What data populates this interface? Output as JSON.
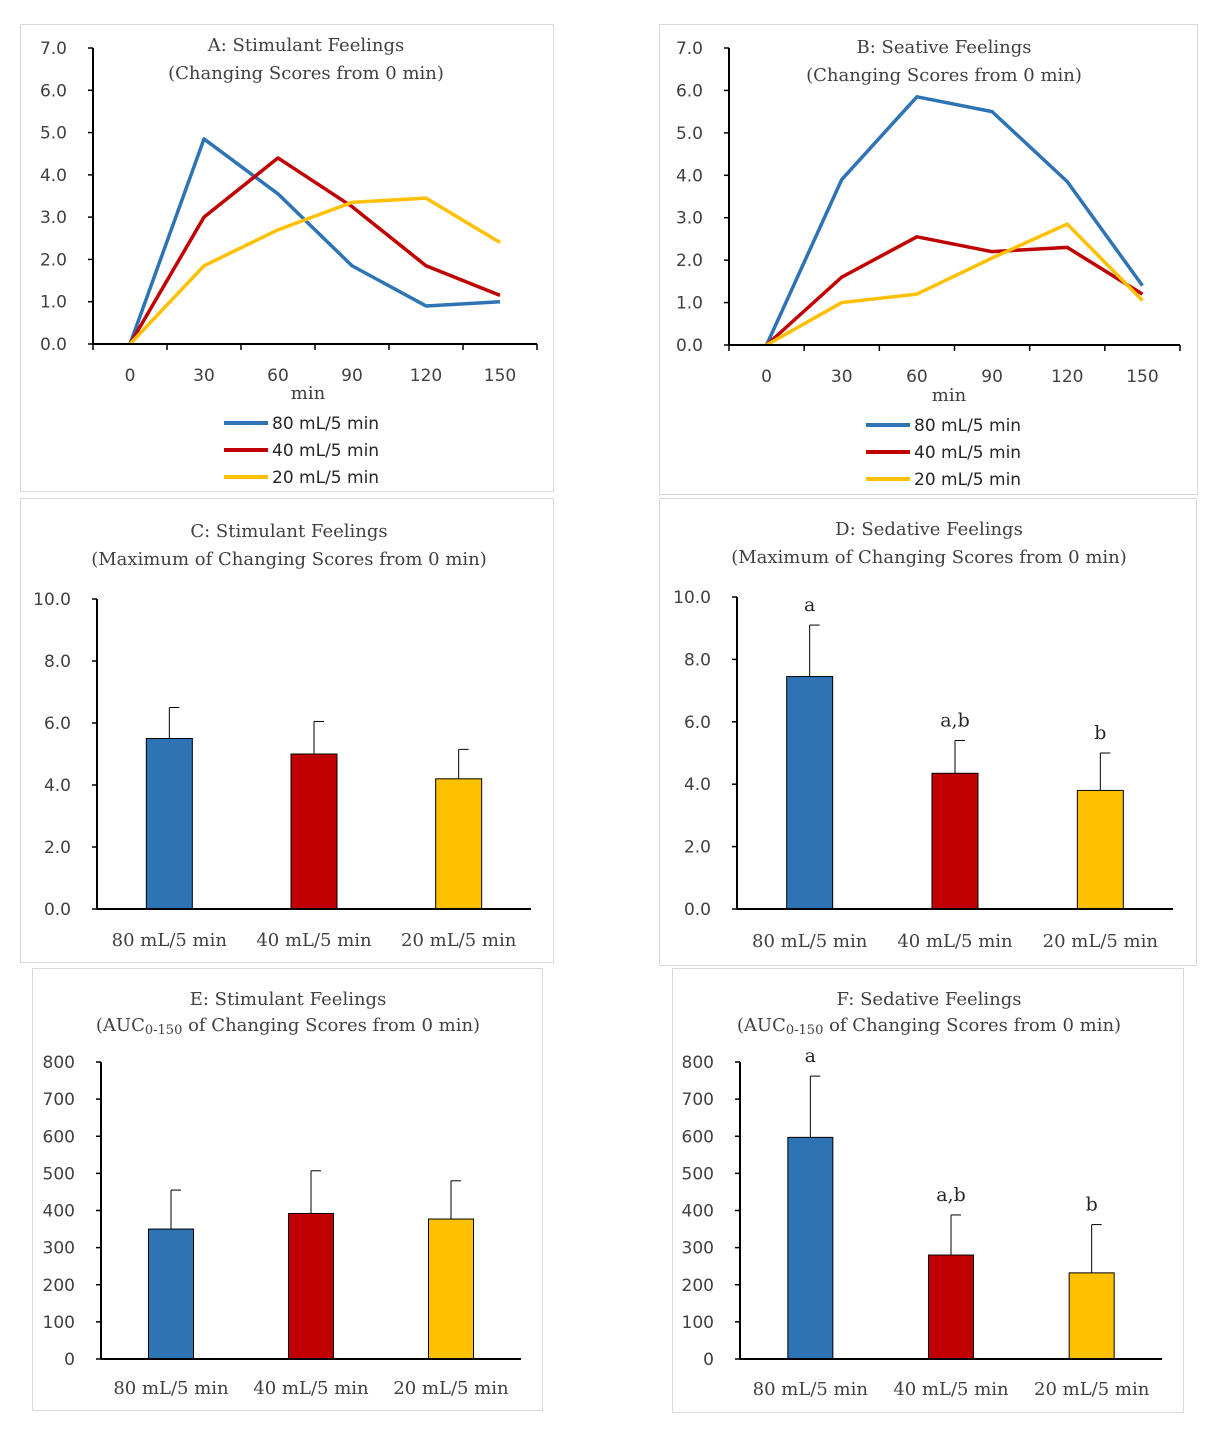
{
  "colors": {
    "c80": "#2e74b5",
    "c40": "#c00000",
    "c20": "#ffc000",
    "axis": "#000000"
  },
  "chart_data": [
    {
      "id": "A",
      "type": "line",
      "title": "A: Stimulant Feelings",
      "subtitle": "(Changing Scores from 0 min)",
      "xlabel": "min",
      "x": [
        0,
        30,
        60,
        90,
        120,
        150
      ],
      "xlim": [
        -15,
        165
      ],
      "ylim": [
        0,
        7
      ],
      "yticks": [
        "0.0",
        "1.0",
        "2.0",
        "3.0",
        "4.0",
        "5.0",
        "6.0",
        "7.0"
      ],
      "ytick_values": [
        0,
        1,
        2,
        3,
        4,
        5,
        6,
        7
      ],
      "series": [
        {
          "name": "80 mL/5 min",
          "color": "#2e74b5",
          "values": [
            0,
            4.85,
            3.55,
            1.85,
            0.9,
            1.0
          ]
        },
        {
          "name": "40 mL/5 min",
          "color": "#c00000",
          "values": [
            0,
            3.0,
            4.4,
            3.25,
            1.85,
            1.15
          ]
        },
        {
          "name": "20 mL/5 min",
          "color": "#ffc000",
          "values": [
            0,
            1.85,
            2.7,
            3.35,
            3.45,
            2.4
          ]
        }
      ]
    },
    {
      "id": "B",
      "type": "line",
      "title": "B: Seative Feelings",
      "subtitle": "(Changing Scores from 0 min)",
      "xlabel": "min",
      "x": [
        0,
        30,
        60,
        90,
        120,
        150
      ],
      "xlim": [
        -15,
        165
      ],
      "ylim": [
        0,
        7
      ],
      "yticks": [
        "0.0",
        "1.0",
        "2.0",
        "3.0",
        "4.0",
        "5.0",
        "6.0",
        "7.0"
      ],
      "ytick_values": [
        0,
        1,
        2,
        3,
        4,
        5,
        6,
        7
      ],
      "series": [
        {
          "name": "80 mL/5 min",
          "color": "#2e74b5",
          "values": [
            0,
            3.9,
            5.85,
            5.5,
            3.85,
            1.4
          ]
        },
        {
          "name": "40 mL/5 min",
          "color": "#c00000",
          "values": [
            0,
            1.6,
            2.55,
            2.2,
            2.3,
            1.2
          ]
        },
        {
          "name": "20 mL/5 min",
          "color": "#ffc000",
          "values": [
            0,
            1.0,
            1.2,
            2.05,
            2.85,
            1.05
          ]
        }
      ]
    },
    {
      "id": "C",
      "type": "bar",
      "title": "C: Stimulant Feelings",
      "subtitle": "(Maximum of Changing Scores from 0 min)",
      "categories": [
        "80 mL/5 min",
        "40 mL/5 min",
        "20 mL/5 min"
      ],
      "values": [
        5.5,
        5.0,
        4.2
      ],
      "errors": [
        1.0,
        1.05,
        0.95
      ],
      "colors": [
        "#2e74b5",
        "#c00000",
        "#ffc000"
      ],
      "labels": [
        "",
        "",
        ""
      ],
      "ylim": [
        0,
        10
      ],
      "yticks": [
        "0.0",
        "2.0",
        "4.0",
        "6.0",
        "8.0",
        "10.0"
      ],
      "ytick_values": [
        0,
        2,
        4,
        6,
        8,
        10
      ]
    },
    {
      "id": "D",
      "type": "bar",
      "title": "D: Sedative Feelings",
      "subtitle": "(Maximum of Changing Scores from 0 min)",
      "categories": [
        "80 mL/5 min",
        "40 mL/5 min",
        "20 mL/5 min"
      ],
      "values": [
        7.45,
        4.35,
        3.8
      ],
      "errors": [
        1.65,
        1.05,
        1.2
      ],
      "colors": [
        "#2e74b5",
        "#c00000",
        "#ffc000"
      ],
      "labels": [
        "a",
        "a,b",
        "b"
      ],
      "ylim": [
        0,
        10
      ],
      "yticks": [
        "0.0",
        "2.0",
        "4.0",
        "6.0",
        "8.0",
        "10.0"
      ],
      "ytick_values": [
        0,
        2,
        4,
        6,
        8,
        10
      ]
    },
    {
      "id": "E",
      "type": "bar",
      "title": "E: Stimulant Feelings",
      "subtitle_pre": "(AUC",
      "subtitle_sub": "0-150",
      "subtitle_post": " of Changing Scores from 0 min)",
      "categories": [
        "80 mL/5 min",
        "40 mL/5 min",
        "20 mL/5 min"
      ],
      "values": [
        350,
        392,
        377
      ],
      "errors": [
        105,
        115,
        103
      ],
      "colors": [
        "#2e74b5",
        "#c00000",
        "#ffc000"
      ],
      "labels": [
        "",
        "",
        ""
      ],
      "ylim": [
        0,
        800
      ],
      "yticks": [
        "0",
        "100",
        "200",
        "300",
        "400",
        "500",
        "600",
        "700",
        "800"
      ],
      "ytick_values": [
        0,
        100,
        200,
        300,
        400,
        500,
        600,
        700,
        800
      ]
    },
    {
      "id": "F",
      "type": "bar",
      "title": "F: Sedative Feelings",
      "subtitle_pre": "(AUC",
      "subtitle_sub": "0-150",
      "subtitle_post": " of Changing Scores from 0 min)",
      "categories": [
        "80 mL/5 min",
        "40 mL/5 min",
        "20 mL/5 min"
      ],
      "values": [
        597,
        280,
        232
      ],
      "errors": [
        165,
        108,
        130
      ],
      "colors": [
        "#2e74b5",
        "#c00000",
        "#ffc000"
      ],
      "labels": [
        "a",
        "a,b",
        "b"
      ],
      "ylim": [
        0,
        800
      ],
      "yticks": [
        "0",
        "100",
        "200",
        "300",
        "400",
        "500",
        "600",
        "700",
        "800"
      ],
      "ytick_values": [
        0,
        100,
        200,
        300,
        400,
        500,
        600,
        700,
        800
      ]
    }
  ]
}
